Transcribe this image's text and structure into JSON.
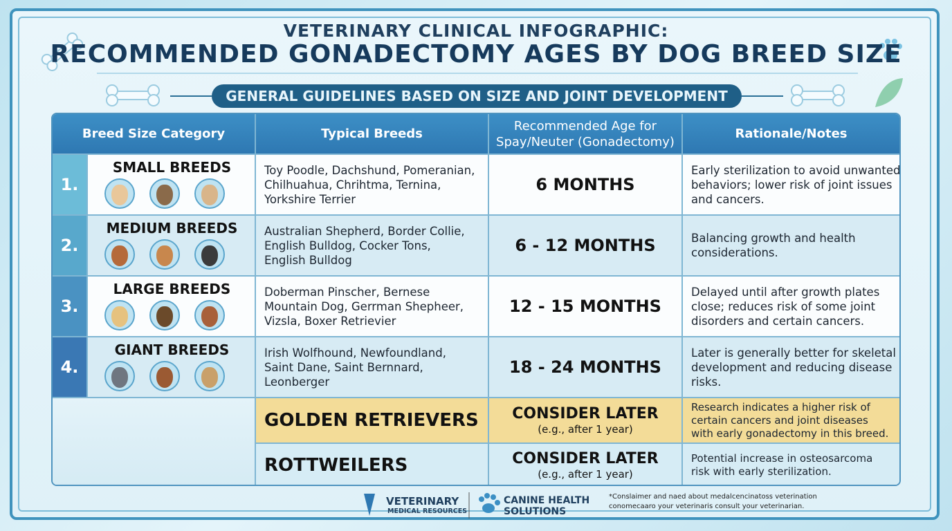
{
  "header": {
    "supertitle": "VETERINARY CLINICAL INFOGRAPHIC:",
    "title": "RECOMMENDED GONADECTOMY AGES BY DOG BREED SIZE",
    "subtitle": "GENERAL GUIDELINES BASED ON SIZE AND JOINT DEVELOPMENT"
  },
  "table": {
    "columns": [
      "Breed Size Category",
      "Typical Breeds",
      [
        "Recommended Age for",
        "Spay/Neuter (Gonadectomy)"
      ],
      "Rationale/Notes"
    ],
    "rows": [
      {
        "number": "1.",
        "category": "SMALL BREEDS",
        "breeds": [
          "Toy Poodle, Dachshund, Pomeranian,",
          "Chilhuahua, Chrihtma, Ternina,",
          "Yorkshire Terrier"
        ],
        "age": "6 MONTHS",
        "notes": [
          "Early sterilization to avoid unwanted",
          "behaviors; lower risk of joint issues",
          "and cancers."
        ]
      },
      {
        "number": "2.",
        "category": "MEDIUM BREEDS",
        "breeds": [
          "Australian Shepherd, Border Collie,",
          "English Bulldog, Cocker Tons,",
          "English Bulldog"
        ],
        "age": "6 - 12 MONTHS",
        "notes": [
          "Balancing growth and health",
          "considerations."
        ]
      },
      {
        "number": "3.",
        "category": "LARGE BREEDS",
        "breeds": [
          "Doberman Pinscher, Bernese",
          "Mountain Dog, Gerrman Shepheer,",
          "Vizsla, Boxer Retrievier"
        ],
        "age": "12 - 15 MONTHS",
        "notes": [
          "Delayed until after growth plates",
          "close; reduces risk of some joint",
          "disorders and certain cancers."
        ]
      },
      {
        "number": "4.",
        "category": "GIANT BREEDS",
        "breeds": [
          "Irish Wolfhound, Newfoundland,",
          "Saint Dane,  Saint Bernnard,",
          "Leonberger"
        ],
        "age": "18 - 24 MONTHS",
        "notes": [
          "Later is generally better for skeletal",
          "development and reducing disease",
          "risks."
        ]
      }
    ],
    "special_rows": [
      {
        "breed": "GOLDEN RETRIEVERS",
        "age": "CONSIDER LATER",
        "age_note": "(e.g., after 1 year)",
        "notes": [
          "Research indicates a higher risk of",
          "certain cancers and joint diseases",
          "with early gonadectomy in this breed."
        ]
      },
      {
        "breed": "ROTTWEILERS",
        "age": "CONSIDER LATER",
        "age_note": "(e.g., after 1 year)",
        "notes": [
          "Potential increase in osteosarcoma",
          "risk with early sterilization."
        ]
      }
    ]
  },
  "footer": {
    "logo1": [
      "VETERINARY",
      "MEDICAL RESOURCES"
    ],
    "logo2": [
      "CANINE HEALTH",
      "SOLUTIONS"
    ],
    "disclaimer": [
      "*Conslaimer and naed about medalcencinatoss veterination",
      "conomecaaro your veterinaris  consult your veterinarian."
    ]
  }
}
